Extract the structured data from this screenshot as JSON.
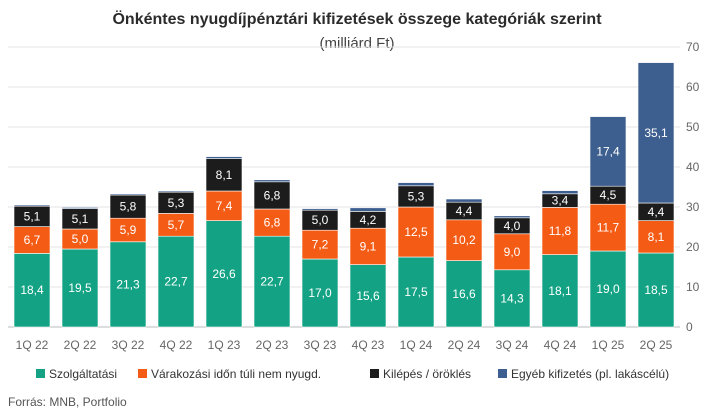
{
  "chart_data": {
    "type": "bar",
    "stacked": true,
    "title": "Önkéntes nyugdíjpénztári kifizetések összege kategóriák szerint",
    "subtitle": "(milliárd Ft)",
    "source": "Forrás: MNB, Portfolio",
    "categories": [
      "1Q 22",
      "2Q 22",
      "3Q 22",
      "4Q 22",
      "1Q 23",
      "2Q 23",
      "3Q 23",
      "4Q 23",
      "1Q 24",
      "2Q 24",
      "3Q 24",
      "4Q 24",
      "1Q 25",
      "2Q 25"
    ],
    "ylim": [
      0,
      70
    ],
    "yticks": [
      0,
      10,
      20,
      30,
      40,
      50,
      60,
      70
    ],
    "y_axis_side": "right",
    "grid": true,
    "legend_position": "bottom",
    "series": [
      {
        "name": "Szolgáltatási",
        "color": "#13a384",
        "values": [
          18.4,
          19.5,
          21.3,
          22.7,
          26.6,
          22.7,
          17.0,
          15.6,
          17.5,
          16.6,
          14.3,
          18.1,
          19.0,
          18.5
        ],
        "labels": [
          "18,4",
          "19,5",
          "21,3",
          "22,7",
          "26,6",
          "22,7",
          "17,0",
          "15,6",
          "17,5",
          "16,6",
          "14,3",
          "18,1",
          "19,0",
          "18,5"
        ]
      },
      {
        "name": "Várakozási időn túli nem nyugd.",
        "color": "#f45b14",
        "values": [
          6.7,
          5.0,
          5.9,
          5.7,
          7.4,
          6.8,
          7.2,
          9.1,
          12.5,
          10.2,
          9.0,
          11.8,
          11.7,
          8.1
        ],
        "labels": [
          "6,7",
          "5,0",
          "5,9",
          "5,7",
          "7,4",
          "6,8",
          "7,2",
          "9,1",
          "12,5",
          "10,2",
          "9,0",
          "11,8",
          "11,7",
          "8,1"
        ]
      },
      {
        "name": "Kilépés / öröklés",
        "color": "#1c1c1c",
        "values": [
          5.1,
          5.1,
          5.8,
          5.3,
          8.1,
          6.8,
          5.0,
          4.2,
          5.3,
          4.4,
          4.0,
          3.4,
          4.5,
          4.4
        ],
        "labels": [
          "5,1",
          "5,1",
          "5,8",
          "5,3",
          "8,1",
          "6,8",
          "5,0",
          "4,2",
          "5,3",
          "4,4",
          "4,0",
          "3,4",
          "4,5",
          "4,4"
        ]
      },
      {
        "name": "Egyéb kifizetés (pl. lakáscélú)",
        "color": "#3d5f8f",
        "values": [
          0.3,
          0.3,
          0.3,
          0.3,
          0.5,
          0.5,
          0.4,
          0.9,
          0.8,
          0.8,
          0.5,
          0.8,
          17.4,
          35.1
        ],
        "labels": [
          "",
          "",
          "",
          "",
          "",
          "",
          "",
          "",
          "",
          "",
          "",
          "",
          "17,4",
          "35,1"
        ]
      }
    ]
  }
}
